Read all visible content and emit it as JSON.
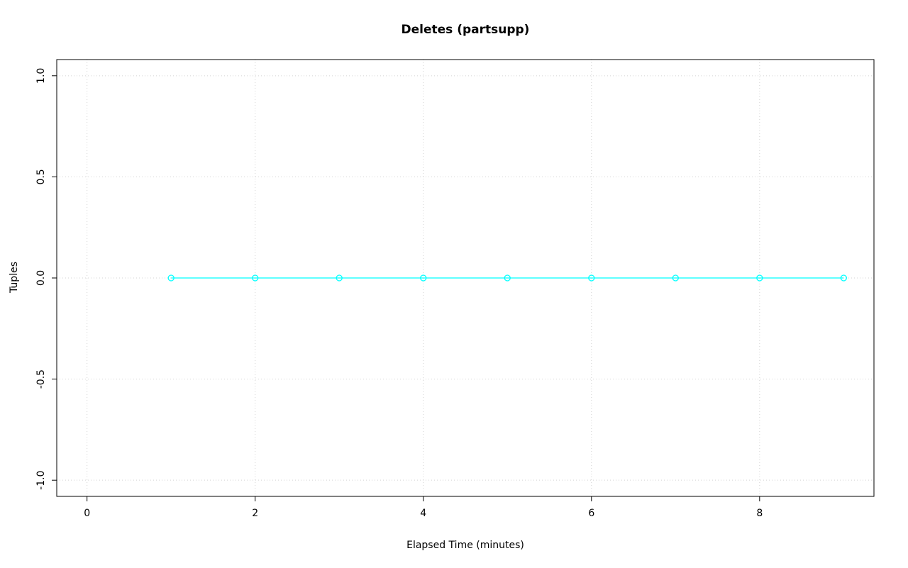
{
  "chart_data": {
    "type": "line",
    "title": "Deletes (partsupp)",
    "xlabel": "Elapsed Time (minutes)",
    "ylabel": "Tuples",
    "series": [
      {
        "name": "Deletes",
        "x": [
          1,
          2,
          3,
          4,
          5,
          6,
          7,
          8,
          9
        ],
        "y": [
          0,
          0,
          0,
          0,
          0,
          0,
          0,
          0,
          0
        ]
      }
    ],
    "xlim": [
      0,
      9
    ],
    "ylim": [
      -1.0,
      1.0
    ],
    "axis_expansion": 0.04,
    "xticks": {
      "values": [
        0,
        2,
        4,
        6,
        8
      ],
      "labels": [
        "0",
        "2",
        "4",
        "6",
        "8"
      ]
    },
    "yticks": {
      "values": [
        -1.0,
        -0.5,
        0.0,
        0.5,
        1.0
      ],
      "labels": [
        "-1.0",
        "-0.5",
        "0.0",
        "0.5",
        "1.0"
      ]
    },
    "grid": "dotted",
    "legend_position": "none",
    "marker": "open-circle",
    "colors": {
      "series": "#00FFFF",
      "grid": "#D3D3D3",
      "axis": "#000000",
      "text": "#000000",
      "background": "#FFFFFF"
    }
  }
}
